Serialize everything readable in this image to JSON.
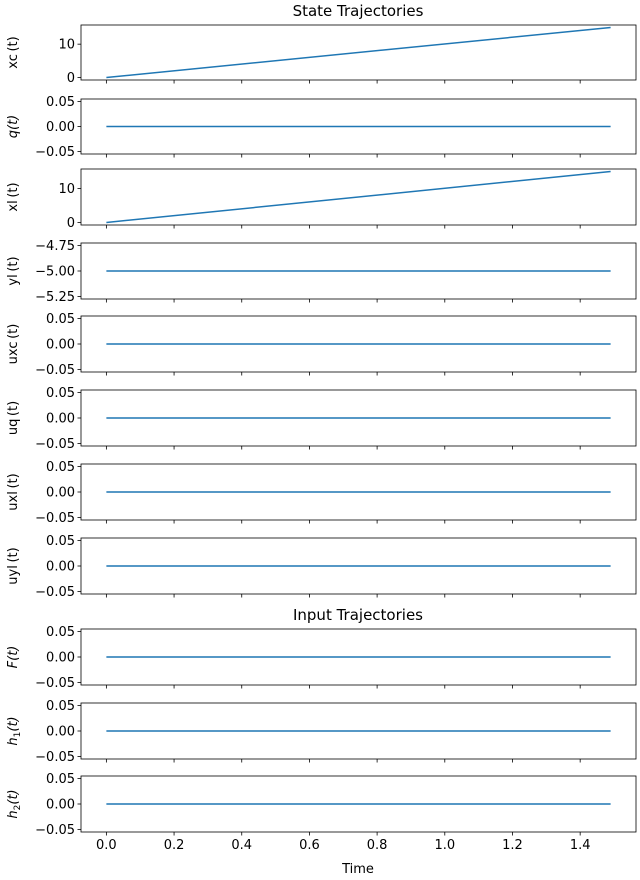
{
  "figure": {
    "state_title": "State Trajectories",
    "input_title": "Input Trajectories",
    "xlabel": "Time",
    "line_color": "#1f77b4"
  },
  "chart_data": [
    {
      "type": "line",
      "group": "state",
      "ylabel": "xc (t)",
      "ylabel_math": false,
      "x": [
        0.0,
        1.49
      ],
      "y": [
        0.0,
        15.0
      ],
      "xlim": [
        -0.075,
        1.565
      ],
      "ylim": [
        -0.75,
        15.75
      ],
      "yticks": [
        0,
        10
      ],
      "ytick_labels": [
        "0",
        "10"
      ],
      "xticks": [
        0,
        0.2,
        0.4,
        0.6,
        0.8,
        1.0,
        1.2,
        1.4
      ]
    },
    {
      "type": "line",
      "group": "state",
      "ylabel": "q(t)",
      "ylabel_math": true,
      "x": [
        0.0,
        1.49
      ],
      "y": [
        0.0,
        0.0
      ],
      "xlim": [
        -0.075,
        1.565
      ],
      "ylim": [
        -0.055,
        0.055
      ],
      "yticks": [
        -0.05,
        0,
        0.05
      ],
      "ytick_labels": [
        "−0.05",
        "0.00",
        "0.05"
      ],
      "xticks": [
        0,
        0.2,
        0.4,
        0.6,
        0.8,
        1.0,
        1.2,
        1.4
      ]
    },
    {
      "type": "line",
      "group": "state",
      "ylabel": "xl (t)",
      "ylabel_math": false,
      "x": [
        0.0,
        1.49
      ],
      "y": [
        0.0,
        15.0
      ],
      "xlim": [
        -0.075,
        1.565
      ],
      "ylim": [
        -0.75,
        15.75
      ],
      "yticks": [
        0,
        10
      ],
      "ytick_labels": [
        "0",
        "10"
      ],
      "xticks": [
        0,
        0.2,
        0.4,
        0.6,
        0.8,
        1.0,
        1.2,
        1.4
      ]
    },
    {
      "type": "line",
      "group": "state",
      "ylabel": "yl (t)",
      "ylabel_math": false,
      "x": [
        0.0,
        1.49
      ],
      "y": [
        -5.0,
        -5.0
      ],
      "xlim": [
        -0.075,
        1.565
      ],
      "ylim": [
        -5.275,
        -4.725
      ],
      "yticks": [
        -5.25,
        -5.0,
        -4.75
      ],
      "ytick_labels": [
        "−5.25",
        "−5.00",
        "−4.75"
      ],
      "xticks": [
        0,
        0.2,
        0.4,
        0.6,
        0.8,
        1.0,
        1.2,
        1.4
      ]
    },
    {
      "type": "line",
      "group": "state",
      "ylabel": "uxc (t)",
      "ylabel_math": false,
      "x": [
        0.0,
        1.49
      ],
      "y": [
        0.0,
        0.0
      ],
      "xlim": [
        -0.075,
        1.565
      ],
      "ylim": [
        -0.055,
        0.055
      ],
      "yticks": [
        -0.05,
        0,
        0.05
      ],
      "ytick_labels": [
        "−0.05",
        "0.00",
        "0.05"
      ],
      "xticks": [
        0,
        0.2,
        0.4,
        0.6,
        0.8,
        1.0,
        1.2,
        1.4
      ]
    },
    {
      "type": "line",
      "group": "state",
      "ylabel": "uq (t)",
      "ylabel_math": false,
      "x": [
        0.0,
        1.49
      ],
      "y": [
        0.0,
        0.0
      ],
      "xlim": [
        -0.075,
        1.565
      ],
      "ylim": [
        -0.055,
        0.055
      ],
      "yticks": [
        -0.05,
        0,
        0.05
      ],
      "ytick_labels": [
        "−0.05",
        "0.00",
        "0.05"
      ],
      "xticks": [
        0,
        0.2,
        0.4,
        0.6,
        0.8,
        1.0,
        1.2,
        1.4
      ]
    },
    {
      "type": "line",
      "group": "state",
      "ylabel": "uxl (t)",
      "ylabel_math": false,
      "x": [
        0.0,
        1.49
      ],
      "y": [
        0.0,
        0.0
      ],
      "xlim": [
        -0.075,
        1.565
      ],
      "ylim": [
        -0.055,
        0.055
      ],
      "yticks": [
        -0.05,
        0,
        0.05
      ],
      "ytick_labels": [
        "−0.05",
        "0.00",
        "0.05"
      ],
      "xticks": [
        0,
        0.2,
        0.4,
        0.6,
        0.8,
        1.0,
        1.2,
        1.4
      ]
    },
    {
      "type": "line",
      "group": "state",
      "ylabel": "uyl (t)",
      "ylabel_math": false,
      "x": [
        0.0,
        1.49
      ],
      "y": [
        0.0,
        0.0
      ],
      "xlim": [
        -0.075,
        1.565
      ],
      "ylim": [
        -0.055,
        0.055
      ],
      "yticks": [
        -0.05,
        0,
        0.05
      ],
      "ytick_labels": [
        "−0.05",
        "0.00",
        "0.05"
      ],
      "xticks": [
        0,
        0.2,
        0.4,
        0.6,
        0.8,
        1.0,
        1.2,
        1.4
      ]
    },
    {
      "type": "line",
      "group": "input",
      "ylabel": "F(t)",
      "ylabel_math": true,
      "x": [
        0.0,
        1.49
      ],
      "y": [
        0.0,
        0.0
      ],
      "xlim": [
        -0.075,
        1.565
      ],
      "ylim": [
        -0.055,
        0.055
      ],
      "yticks": [
        -0.05,
        0,
        0.05
      ],
      "ytick_labels": [
        "−0.05",
        "0.00",
        "0.05"
      ],
      "xticks": [
        0,
        0.2,
        0.4,
        0.6,
        0.8,
        1.0,
        1.2,
        1.4
      ]
    },
    {
      "type": "line",
      "group": "input",
      "ylabel": "h1(t)",
      "ylabel_math": true,
      "ylabel_sub": "1",
      "x": [
        0.0,
        1.49
      ],
      "y": [
        0.0,
        0.0
      ],
      "xlim": [
        -0.075,
        1.565
      ],
      "ylim": [
        -0.055,
        0.055
      ],
      "yticks": [
        -0.05,
        0,
        0.05
      ],
      "ytick_labels": [
        "−0.05",
        "0.00",
        "0.05"
      ],
      "xticks": [
        0,
        0.2,
        0.4,
        0.6,
        0.8,
        1.0,
        1.2,
        1.4
      ]
    },
    {
      "type": "line",
      "group": "input",
      "ylabel": "h2(t)",
      "ylabel_math": true,
      "ylabel_sub": "2",
      "x": [
        0.0,
        1.49
      ],
      "y": [
        0.0,
        0.0
      ],
      "xlim": [
        -0.075,
        1.565
      ],
      "ylim": [
        -0.055,
        0.055
      ],
      "yticks": [
        -0.05,
        0,
        0.05
      ],
      "ytick_labels": [
        "−0.05",
        "0.00",
        "0.05"
      ],
      "xticks": [
        0,
        0.2,
        0.4,
        0.6,
        0.8,
        1.0,
        1.2,
        1.4
      ],
      "xtick_labels": [
        "0.0",
        "0.2",
        "0.4",
        "0.6",
        "0.8",
        "1.0",
        "1.2",
        "1.4"
      ]
    }
  ]
}
